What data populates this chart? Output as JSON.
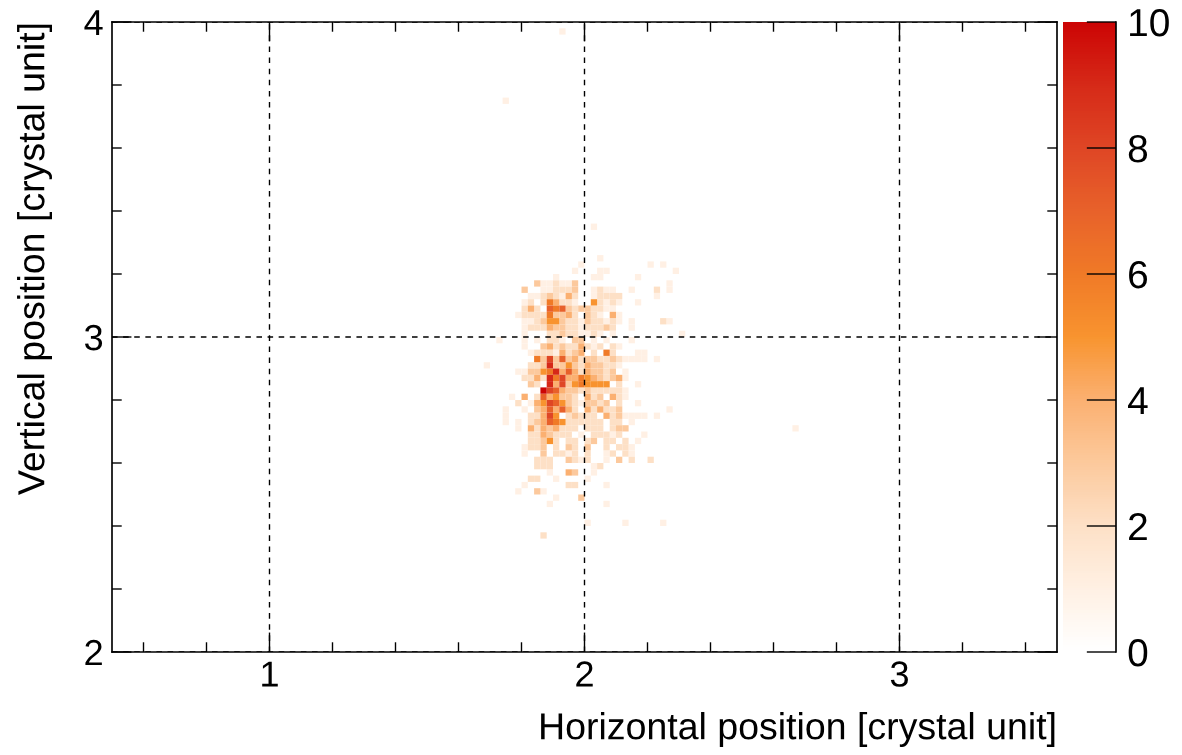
{
  "chart_data": {
    "type": "scatter",
    "xlabel": "Horizontal position [crystal unit]",
    "ylabel": "Vertical position [crystal unit]",
    "xlim": [
      0.5,
      3.5
    ],
    "ylim": [
      2,
      4
    ],
    "xticks": [
      {
        "value": 0.6,
        "label": null
      },
      {
        "value": 0.8,
        "label": null
      },
      1,
      {
        "value": 1.2,
        "label": null
      },
      {
        "value": 1.4,
        "label": null
      },
      {
        "value": 1.6,
        "label": null
      },
      {
        "value": 1.8,
        "label": null
      },
      2,
      {
        "value": 2.2,
        "label": null
      },
      {
        "value": 2.4,
        "label": null
      },
      {
        "value": 2.6,
        "label": null
      },
      {
        "value": 2.8,
        "label": null
      },
      3,
      {
        "value": 3.2,
        "label": null
      },
      {
        "value": 3.4,
        "label": null
      }
    ],
    "yticks": [
      2,
      {
        "value": 2.2,
        "label": null
      },
      {
        "value": 2.4,
        "label": null
      },
      {
        "value": 2.6,
        "label": null
      },
      {
        "value": 2.8,
        "label": null
      },
      3,
      {
        "value": 3.2,
        "label": null
      },
      {
        "value": 3.4,
        "label": null
      },
      {
        "value": 3.6,
        "label": null
      },
      {
        "value": 3.8,
        "label": null
      },
      4
    ],
    "clim": [
      0,
      10
    ],
    "cticks": [
      0,
      2,
      4,
      6,
      8,
      10
    ],
    "grid": true,
    "marker": "square",
    "series": [
      {
        "x": [
          1.75,
          1.93,
          2.67,
          2.03,
          2.05,
          1.99,
          2.21,
          2.25,
          1.97,
          2.05,
          2.07,
          2.29,
          1.91,
          2.03,
          2.05,
          2.17,
          1.87,
          1.89,
          1.93,
          1.95,
          2.27,
          1.87,
          1.89,
          2.03,
          2.07,
          2.09,
          2.15,
          2.27,
          1.83,
          1.85,
          1.93,
          2.03,
          2.23,
          1.81,
          1.97,
          2.07,
          2.11,
          2.17,
          2.07,
          2.09,
          1.79,
          2.05,
          2.11,
          1.81,
          1.83,
          1.99,
          2.07,
          2.11,
          2.15,
          2.27,
          1.81,
          1.99,
          2.15,
          1.81,
          1.99,
          2.01,
          2.05,
          2.09,
          2.31,
          1.73,
          1.81,
          1.85,
          1.93,
          2.03,
          2.07,
          2.15,
          1.81,
          2.03,
          2.11,
          1.83,
          1.91,
          2.17,
          2.19,
          2.13,
          2.15,
          2.17,
          2.19,
          2.23,
          1.69,
          2.11,
          1.79,
          1.81,
          2.13,
          2.13,
          2.17,
          2.13,
          1.77,
          2.13,
          1.83,
          1.99,
          2.17,
          1.75,
          1.81,
          2.27,
          1.75,
          2.13,
          2.15,
          2.17,
          2.19,
          2.23,
          1.75,
          1.79,
          2.15,
          1.79,
          1.99,
          2.09,
          2.19,
          2.17,
          1.81,
          2.15,
          1.81,
          1.95,
          2.07,
          2.15,
          1.99,
          2.07,
          2.03,
          1.89,
          2.03,
          1.91,
          2.01,
          1.81,
          2.07,
          1.79,
          1.87,
          1.91,
          1.89,
          2.07,
          2.01,
          2.13,
          2.25
        ],
        "values": [
          3.75,
          3.97,
          2.71,
          3.35,
          3.25,
          3.23,
          3.23,
          3.23,
          3.21,
          3.21,
          3.21,
          3.21,
          3.19,
          3.19,
          3.19,
          3.19,
          3.17,
          3.17,
          3.17,
          3.17,
          3.17,
          3.15,
          3.15,
          3.15,
          3.15,
          3.15,
          3.15,
          3.15,
          3.13,
          3.13,
          3.13,
          3.13,
          3.13,
          3.11,
          3.11,
          3.11,
          3.11,
          3.11,
          3.09,
          3.09,
          3.07,
          3.07,
          3.07,
          3.05,
          3.05,
          3.05,
          3.05,
          3.05,
          3.05,
          3.05,
          3.03,
          3.03,
          3.03,
          3.01,
          3.01,
          3.01,
          3.01,
          3.01,
          3.01,
          2.99,
          2.99,
          2.99,
          2.99,
          2.99,
          2.99,
          2.99,
          2.97,
          2.97,
          2.97,
          2.95,
          2.95,
          2.95,
          2.95,
          2.93,
          2.93,
          2.93,
          2.93,
          2.93,
          2.91,
          2.91,
          2.89,
          2.89,
          2.89,
          2.87,
          2.85,
          2.83,
          2.81,
          2.81,
          2.79,
          2.79,
          2.79,
          2.77,
          2.77,
          2.77,
          2.75,
          2.75,
          2.75,
          2.75,
          2.75,
          2.75,
          2.73,
          2.73,
          2.73,
          2.71,
          2.69,
          2.69,
          2.69,
          2.67,
          2.65,
          2.65,
          2.63,
          2.63,
          2.63,
          2.63,
          2.61,
          2.61,
          2.59,
          2.57,
          2.57,
          2.55,
          2.55,
          2.53,
          2.53,
          2.51,
          2.51,
          2.49,
          2.47,
          2.47,
          2.41,
          2.41,
          2.41
        ],
        "cvalues": [
          1,
          1,
          1,
          1,
          1,
          1,
          1,
          1,
          1,
          1,
          1,
          1,
          1,
          1,
          1,
          1,
          1,
          1,
          1,
          1,
          1,
          1,
          1,
          1,
          1,
          1,
          1,
          1,
          1,
          1,
          1,
          1,
          1,
          1,
          1,
          1,
          1,
          1,
          1,
          1,
          1,
          1,
          1,
          1,
          1,
          1,
          1,
          1,
          1,
          1,
          1,
          1,
          1,
          1,
          1,
          1,
          1,
          1,
          1,
          1,
          1,
          1,
          1,
          1,
          1,
          1,
          1,
          1,
          1,
          1,
          1,
          1,
          1,
          1,
          1,
          1,
          1,
          1,
          1,
          1,
          1,
          1,
          1,
          1,
          1,
          1,
          1,
          1,
          1,
          1,
          1,
          1,
          1,
          1,
          1,
          1,
          1,
          1,
          1,
          1,
          1,
          1,
          1,
          1,
          1,
          1,
          1,
          1,
          1,
          1,
          1,
          1,
          1,
          1,
          1,
          1,
          1,
          1,
          1,
          1,
          1,
          1,
          1,
          1,
          1,
          1,
          1,
          1,
          1,
          1,
          1
        ]
      },
      {
        "x": [
          1.91,
          1.91,
          1.93,
          1.95,
          2.05,
          2.23,
          1.87,
          1.91,
          1.97,
          2.05,
          2.07,
          2.09,
          2.11,
          1.83,
          1.87,
          1.93,
          1.95,
          2.05,
          2.09,
          1.81,
          1.85,
          1.97,
          2.03,
          2.05,
          1.81,
          1.83,
          1.85,
          1.87,
          1.97,
          2.03,
          1.85,
          1.95,
          1.97,
          2.03,
          2.05,
          2.09,
          2.25,
          1.83,
          1.85,
          1.87,
          1.95,
          1.97,
          2.01,
          2.03,
          2.05,
          2.09,
          1.89,
          1.91,
          1.95,
          1.97,
          2.03,
          1.89,
          1.91,
          1.91,
          1.95,
          1.97,
          2.01,
          2.05,
          2.09,
          1.85,
          1.87,
          1.89,
          1.95,
          2.03,
          2.09,
          1.99,
          2.05,
          2.07,
          2.11,
          1.83,
          1.85,
          1.99,
          2.07,
          2.09,
          1.99,
          2.07,
          1.81,
          1.83,
          1.87,
          2.07,
          1.85,
          2.11,
          1.99,
          2.03,
          2.05,
          2.07,
          2.09,
          2.11,
          1.85,
          1.97,
          2.03,
          2.11,
          1.79,
          1.97,
          2.05,
          2.11,
          1.97,
          2.03,
          2.07,
          2.09,
          1.83,
          1.85,
          1.95,
          1.99,
          2.01,
          2.03,
          2.09,
          1.83,
          1.95,
          1.97,
          1.99,
          2.01,
          2.03,
          2.05,
          2.09,
          2.11,
          1.85,
          1.93,
          1.95,
          1.97,
          2.01,
          2.03,
          2.05,
          2.09,
          1.83,
          1.85,
          1.91,
          1.93,
          1.95,
          2.03,
          2.05,
          2.07,
          2.11,
          1.83,
          1.85,
          1.91,
          1.95,
          1.97,
          2.01,
          2.07,
          2.09,
          2.13,
          1.83,
          1.85,
          1.91,
          1.97,
          2.07,
          2.11,
          2.13,
          1.91,
          1.93,
          1.97,
          2.01,
          2.09,
          2.13,
          1.85,
          1.87,
          1.89,
          1.97,
          2.01,
          2.15,
          2.21,
          1.85,
          1.87,
          1.89,
          2.05,
          1.83,
          1.85,
          1.95,
          1.97,
          1.87
        ],
        "values": [
          3.17,
          3.15,
          3.15,
          3.15,
          3.15,
          3.15,
          3.13,
          3.13,
          3.13,
          3.13,
          3.13,
          3.13,
          3.13,
          3.11,
          3.11,
          3.11,
          3.11,
          3.11,
          3.11,
          3.09,
          3.09,
          3.09,
          3.09,
          3.09,
          3.07,
          3.07,
          3.07,
          3.07,
          3.07,
          3.07,
          3.05,
          3.05,
          3.05,
          3.05,
          3.05,
          3.05,
          3.05,
          3.03,
          3.03,
          3.03,
          3.03,
          3.03,
          3.03,
          3.03,
          3.03,
          3.03,
          3.01,
          3.01,
          3.01,
          3.01,
          3.01,
          2.99,
          2.99,
          2.97,
          2.97,
          2.97,
          2.97,
          2.97,
          2.97,
          2.95,
          2.95,
          2.95,
          2.95,
          2.95,
          2.95,
          2.93,
          2.93,
          2.93,
          2.93,
          2.91,
          2.91,
          2.91,
          2.91,
          2.91,
          2.89,
          2.89,
          2.87,
          2.87,
          2.87,
          2.87,
          2.85,
          2.85,
          2.83,
          2.83,
          2.83,
          2.83,
          2.83,
          2.83,
          2.81,
          2.81,
          2.81,
          2.81,
          2.79,
          2.79,
          2.79,
          2.79,
          2.77,
          2.77,
          2.77,
          2.77,
          2.75,
          2.75,
          2.75,
          2.75,
          2.75,
          2.75,
          2.75,
          2.73,
          2.73,
          2.73,
          2.73,
          2.73,
          2.73,
          2.73,
          2.73,
          2.73,
          2.71,
          2.71,
          2.71,
          2.71,
          2.71,
          2.71,
          2.71,
          2.71,
          2.69,
          2.69,
          2.69,
          2.69,
          2.69,
          2.69,
          2.69,
          2.69,
          2.69,
          2.67,
          2.67,
          2.67,
          2.67,
          2.67,
          2.67,
          2.67,
          2.67,
          2.67,
          2.65,
          2.65,
          2.65,
          2.65,
          2.65,
          2.65,
          2.65,
          2.63,
          2.63,
          2.63,
          2.63,
          2.63,
          2.63,
          2.61,
          2.61,
          2.61,
          2.61,
          2.61,
          2.61,
          2.61,
          2.59,
          2.59,
          2.59,
          2.59,
          2.55,
          2.55,
          2.53,
          2.53,
          2.37
        ],
        "cvalues": [
          2,
          2,
          2,
          2,
          2,
          2,
          2,
          2,
          2,
          2,
          2,
          2,
          2,
          2,
          2,
          2,
          2,
          2,
          2,
          2,
          2,
          2,
          2,
          2,
          2,
          2,
          2,
          2,
          2,
          2,
          2,
          2,
          2,
          2,
          2,
          2,
          2,
          2,
          2,
          2,
          2,
          2,
          2,
          2,
          2,
          2,
          2,
          2,
          2,
          2,
          2,
          2,
          2,
          2,
          2,
          2,
          2,
          2,
          2,
          2,
          2,
          2,
          2,
          2,
          2,
          2,
          2,
          2,
          2,
          2,
          2,
          2,
          2,
          2,
          2,
          2,
          2,
          2,
          2,
          2,
          2,
          2,
          2,
          2,
          2,
          2,
          2,
          2,
          2,
          2,
          2,
          2,
          2,
          2,
          2,
          2,
          2,
          2,
          2,
          2,
          2,
          2,
          2,
          2,
          2,
          2,
          2,
          2,
          2,
          2,
          2,
          2,
          2,
          2,
          2,
          2,
          2,
          2,
          2,
          2,
          2,
          2,
          2,
          2,
          2,
          2,
          2,
          2,
          2,
          2,
          2,
          2,
          2,
          2,
          2,
          2,
          2,
          2,
          2,
          2,
          2,
          2,
          2,
          2,
          2,
          2,
          2,
          2,
          2,
          2,
          2,
          2,
          2,
          2,
          2,
          2,
          2,
          2,
          2,
          2,
          2,
          2,
          2,
          2,
          2,
          2,
          2,
          2,
          2,
          2,
          2
        ]
      },
      {
        "x": [
          1.85,
          1.97,
          1.81,
          1.97,
          1.89,
          1.95,
          1.99,
          2.01,
          1.91,
          1.93,
          2.01,
          1.87,
          1.93,
          2.01,
          1.91,
          1.93,
          2.07,
          1.93,
          1.97,
          1.99,
          1.87,
          1.93,
          1.97,
          1.87,
          1.91,
          1.95,
          2.01,
          2.03,
          2.09,
          1.87,
          1.91,
          1.93,
          1.97,
          2.03,
          2.05,
          1.83,
          1.85,
          2.03,
          2.05,
          2.09,
          2.05,
          2.09,
          1.83,
          1.95,
          1.95,
          1.97,
          2.01,
          1.93,
          1.95,
          2.05,
          1.95,
          2.01,
          2.03,
          2.07,
          1.85,
          2.11,
          1.97,
          2.11,
          1.85,
          1.89,
          2.11,
          2.13,
          1.89,
          1.87,
          2.03,
          1.87,
          1.95,
          2.01,
          1.87,
          1.95,
          2.11,
          1.97,
          1.85,
          1.99
        ],
        "values": [
          3.17,
          3.17,
          3.15,
          3.15,
          3.13,
          3.09,
          3.09,
          3.09,
          3.07,
          3.07,
          3.07,
          3.05,
          3.05,
          3.05,
          3.03,
          3.03,
          3.03,
          3.01,
          2.99,
          2.99,
          2.97,
          2.97,
          2.95,
          2.93,
          2.93,
          2.93,
          2.93,
          2.93,
          2.93,
          2.91,
          2.91,
          2.91,
          2.91,
          2.91,
          2.91,
          2.89,
          2.89,
          2.89,
          2.89,
          2.89,
          2.87,
          2.87,
          2.85,
          2.85,
          2.83,
          2.83,
          2.83,
          2.81,
          2.81,
          2.81,
          2.79,
          2.79,
          2.79,
          2.79,
          2.77,
          2.77,
          2.75,
          2.75,
          2.73,
          2.71,
          2.71,
          2.71,
          2.69,
          2.67,
          2.67,
          2.65,
          2.65,
          2.65,
          2.63,
          2.61,
          2.61,
          2.57,
          2.51,
          2.49
        ],
        "cvalues": [
          3,
          3,
          3,
          3,
          3,
          3,
          3,
          3,
          3,
          3,
          3,
          3,
          3,
          3,
          3,
          3,
          3,
          3,
          3,
          3,
          3,
          3,
          3,
          3,
          3,
          3,
          3,
          3,
          3,
          3,
          3,
          3,
          3,
          3,
          3,
          3,
          3,
          3,
          3,
          3,
          3,
          3,
          3,
          3,
          3,
          3,
          3,
          3,
          3,
          3,
          3,
          3,
          3,
          3,
          3,
          3,
          3,
          3,
          3,
          3,
          3,
          3,
          3,
          3,
          3,
          3,
          3,
          3,
          3,
          3,
          3,
          3,
          3,
          3
        ]
      },
      {
        "x": [
          1.95,
          1.91,
          1.83,
          1.95,
          2.09,
          1.89,
          1.89,
          1.99,
          1.93,
          1.99,
          1.97,
          2.01,
          1.93,
          1.97,
          2.01,
          1.85,
          1.95,
          1.97,
          2.03,
          2.11,
          1.91,
          1.93,
          1.81,
          1.89,
          2.01,
          2.09,
          1.85,
          1.87,
          1.91,
          1.95,
          2.01,
          2.05,
          1.87,
          2.07,
          1.87,
          1.83,
          1.87,
          1.91,
          1.87,
          1.95
        ],
        "values": [
          3.13,
          3.11,
          3.09,
          3.07,
          3.07,
          3.03,
          2.97,
          2.97,
          2.95,
          2.95,
          2.93,
          2.91,
          2.89,
          2.89,
          2.89,
          2.87,
          2.87,
          2.87,
          2.87,
          2.87,
          2.85,
          2.83,
          2.81,
          2.81,
          2.81,
          2.81,
          2.79,
          2.77,
          2.77,
          2.77,
          2.77,
          2.77,
          2.75,
          2.75,
          2.73,
          2.71,
          2.71,
          2.71,
          2.69,
          2.57
        ],
        "cvalues": [
          4,
          4,
          4,
          4,
          4,
          4,
          4,
          4,
          4,
          4,
          4,
          4,
          4,
          4,
          4,
          4,
          4,
          4,
          4,
          4,
          4,
          4,
          4,
          4,
          4,
          4,
          4,
          4,
          4,
          4,
          4,
          4,
          4,
          4,
          4,
          4,
          4,
          4,
          4,
          4
        ]
      },
      {
        "x": [
          2.03,
          1.89,
          1.91,
          1.95,
          1.87,
          2.01,
          1.97,
          2.01,
          2.03,
          2.05,
          2.07,
          1.91,
          1.87,
          1.93,
          1.91,
          1.93,
          1.89
        ],
        "values": [
          3.11,
          3.05,
          3.05,
          2.91,
          2.89,
          2.87,
          2.85,
          2.85,
          2.85,
          2.85,
          2.85,
          2.81,
          2.79,
          2.79,
          2.75,
          2.73,
          2.67
        ],
        "cvalues": [
          5,
          5,
          5,
          5,
          5,
          5,
          5,
          5,
          5,
          5,
          5,
          5,
          5,
          5,
          5,
          5,
          5
        ]
      },
      {
        "x": [
          1.89,
          1.91,
          1.89,
          2.07,
          1.85,
          1.89,
          1.91,
          1.99,
          1.99,
          1.91
        ],
        "values": [
          3.11,
          3.09,
          3.07,
          2.95,
          2.93,
          2.89,
          2.87,
          2.87,
          2.85,
          2.73
        ],
        "cvalues": [
          6,
          6,
          6,
          6,
          6,
          6,
          6,
          6,
          6,
          6
        ]
      },
      {
        "x": [
          1.89,
          1.93,
          1.93,
          1.95,
          1.91,
          1.87,
          1.91,
          1.89,
          1.93,
          1.89
        ],
        "values": [
          3.09,
          3.09,
          2.93,
          2.89,
          2.83,
          2.81,
          2.79,
          2.77,
          2.77,
          2.73
        ],
        "cvalues": [
          7,
          7,
          7,
          7,
          7,
          7,
          7,
          7,
          7,
          7
        ]
      },
      {
        "x": [
          1.89,
          1.93,
          1.93,
          1.89,
          1.89,
          1.89
        ],
        "values": [
          2.93,
          2.87,
          2.85,
          2.83,
          2.79,
          2.75
        ],
        "cvalues": [
          8,
          8,
          8,
          8,
          8,
          8
        ]
      },
      {
        "x": [
          1.89,
          1.91,
          1.89,
          1.89
        ],
        "values": [
          2.91,
          2.89,
          2.87,
          2.85
        ],
        "cvalues": [
          9,
          9,
          9,
          9
        ]
      },
      {
        "x": [
          1.87
        ],
        "values": [
          2.83
        ],
        "cvalues": [
          10
        ]
      }
    ]
  }
}
